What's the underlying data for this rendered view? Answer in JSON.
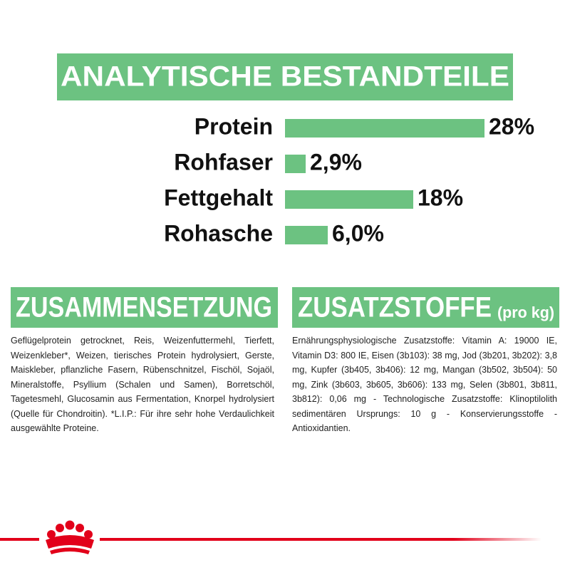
{
  "title": "ANALYTISCHE BESTANDTEILE",
  "chart_data": {
    "type": "bar",
    "orientation": "horizontal",
    "categories": [
      "Protein",
      "Rohfaser",
      "Fettgehalt",
      "Rohasche"
    ],
    "values": [
      28,
      2.9,
      18,
      6.0
    ],
    "value_labels": [
      "28%",
      "2,9%",
      "18%",
      "6,0%"
    ],
    "color": "#6cc281"
  },
  "sections": [
    {
      "title": "ZUSAMMENSETZUNG",
      "text": "Geflügelprotein getrocknet, Reis, Weizenfuttermehl, Tierfett, Weizenkleber*, Weizen, tierisches Protein hydrolysiert, Gerste, Maiskleber, pflanzliche Fasern, Rübenschnitzel, Fischöl, Sojaöl, Mineralstoffe, Psyllium (Schalen und Samen), Borretschöl, Tagetesmehl, Glucosamin aus Fermentation, Knorpel hydrolysiert (Quelle für Chondroitin). *L.I.P.: Für ihre sehr hohe Verdaulichkeit ausgewählte Proteine."
    },
    {
      "title": "ZUSATZSTOFFE",
      "subtitle": "(pro kg)",
      "text": "Ernährungsphysiologische Zusatzstoffe: Vitamin A: 19000 IE, Vitamin D3: 800 IE, Eisen (3b103): 38 mg, Jod (3b201, 3b202): 3,8 mg, Kupfer (3b405, 3b406): 12 mg, Mangan (3b502, 3b504): 50 mg, Zink (3b603, 3b605, 3b606): 133 mg, Selen (3b801, 3b811, 3b812): 0,06 mg - Technologische Zusatzstoffe: Klinoptilolith sedimentären Ursprungs: 10 g - Konservierungsstoffe - Antioxidantien."
    }
  ]
}
